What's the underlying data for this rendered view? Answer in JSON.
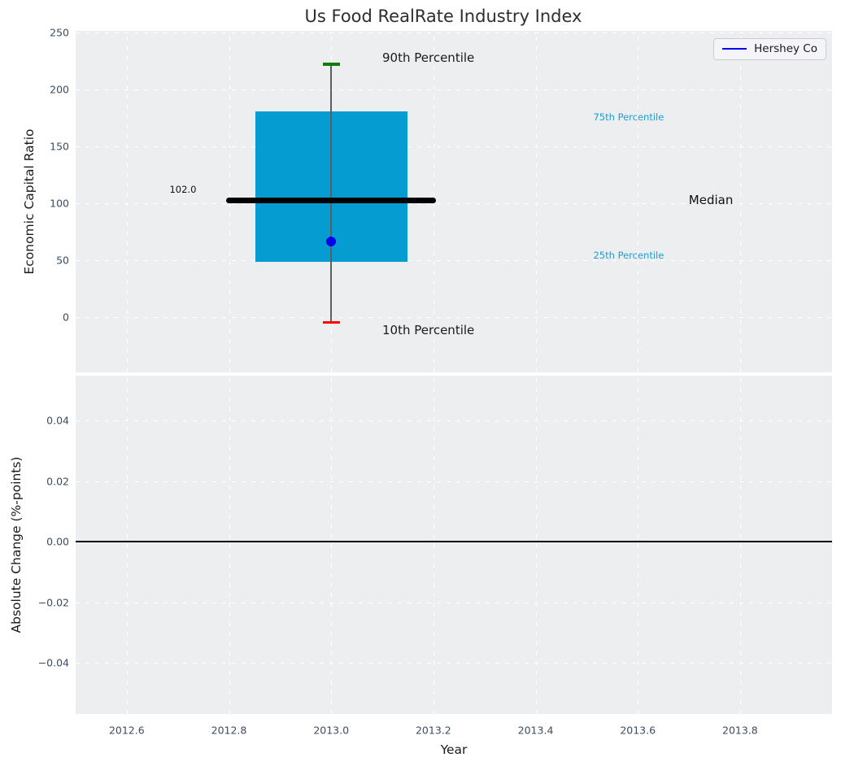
{
  "figure": {
    "title": "Us Food RealRate Industry Index",
    "background_color": "#ffffff",
    "plot_background_color": "#eceef0",
    "grid_color": "#ffffff"
  },
  "chart_data": [
    {
      "type": "boxplot",
      "title": "Us Food RealRate Industry Index",
      "ylabel": "Economic Capital Ratio",
      "xlabel": "",
      "xlim": [
        2012.5,
        2013.98
      ],
      "ylim": [
        -49,
        251.5
      ],
      "grid": true,
      "yticks": [
        {
          "v": 0,
          "label": "0"
        },
        {
          "v": 50,
          "label": "50"
        },
        {
          "v": 100,
          "label": "100"
        },
        {
          "v": 150,
          "label": "150"
        },
        {
          "v": 200,
          "label": "200"
        },
        {
          "v": 250,
          "label": "250"
        }
      ],
      "xticks": [
        {
          "v": 2012.6,
          "label": ""
        },
        {
          "v": 2012.8,
          "label": ""
        },
        {
          "v": 2013.0,
          "label": ""
        },
        {
          "v": 2013.2,
          "label": ""
        },
        {
          "v": 2013.4,
          "label": ""
        },
        {
          "v": 2013.6,
          "label": ""
        },
        {
          "v": 2013.8,
          "label": ""
        }
      ],
      "box": {
        "x": 2013.0,
        "q1": 48,
        "median": 102.0,
        "q3": 181,
        "whisker_low": -5,
        "whisker_high": 222,
        "median_label": "102.0",
        "box_color": "#059cd2",
        "median_color": "#000000",
        "whisker_color": "#5e5e5e",
        "cap_high_color": "#0a800a",
        "cap_low_color": "#ff0000",
        "box_halfwidth": 0.149,
        "median_halfwidth": 0.205,
        "cap_halfwidth": 0.017
      },
      "points": [
        {
          "name": "Hershey Co",
          "x": 2013.0,
          "y": 66,
          "color": "#0000ee",
          "size": 12
        }
      ],
      "annotations": [
        {
          "id": "90th-percentile-label",
          "text": "90th Percentile",
          "x": 2013.1,
          "y": 228,
          "size": 15,
          "color": "#1a1a1a",
          "anchor": "start"
        },
        {
          "id": "10th-percentile-label",
          "text": "10th Percentile",
          "x": 2013.1,
          "y": -11.8,
          "size": 15,
          "color": "#1a1a1a",
          "anchor": "start"
        },
        {
          "id": "75th-percentile-label",
          "text": "75th Percentile",
          "x": 2013.582,
          "y": 176,
          "size": 11.5,
          "color": "#1b9ed2",
          "anchor": "middle"
        },
        {
          "id": "25th-percentile-label",
          "text": "25th Percentile",
          "x": 2013.582,
          "y": 54,
          "size": 11.5,
          "color": "#1b9ed2",
          "anchor": "middle"
        },
        {
          "id": "median-label",
          "text": "Median",
          "x": 2013.743,
          "y": 103,
          "size": 15,
          "color": "#111111",
          "anchor": "middle"
        },
        {
          "id": "median-value-label",
          "text": "102.0",
          "x": 2012.71,
          "y": 112,
          "size": 11.5,
          "color": "#111111",
          "anchor": "middle"
        }
      ],
      "legend": {
        "position": "upper right",
        "entries": [
          {
            "label": "Hershey Co",
            "color": "#0000ee"
          }
        ]
      }
    },
    {
      "type": "line",
      "title": "",
      "ylabel": "Absolute Change (%-points)",
      "xlabel": "Year",
      "xlim": [
        2012.5,
        2013.98
      ],
      "ylim": [
        -0.0569,
        0.0548
      ],
      "grid": true,
      "yticks": [
        {
          "v": 0.04,
          "label": "0.04"
        },
        {
          "v": 0.02,
          "label": "0.02"
        },
        {
          "v": 0.0,
          "label": "0.00"
        },
        {
          "v": -0.02,
          "label": "−0.02"
        },
        {
          "v": -0.04,
          "label": "−0.04"
        }
      ],
      "xticks": [
        {
          "v": 2012.6,
          "label": "2012.6"
        },
        {
          "v": 2012.8,
          "label": "2012.8"
        },
        {
          "v": 2013.0,
          "label": "2013.0"
        },
        {
          "v": 2013.2,
          "label": "2013.2"
        },
        {
          "v": 2013.4,
          "label": "2013.4"
        },
        {
          "v": 2013.6,
          "label": "2013.6"
        },
        {
          "v": 2013.8,
          "label": "2013.8"
        }
      ],
      "zero_line": {
        "y": 0.0,
        "color": "#000000"
      },
      "series": []
    }
  ]
}
